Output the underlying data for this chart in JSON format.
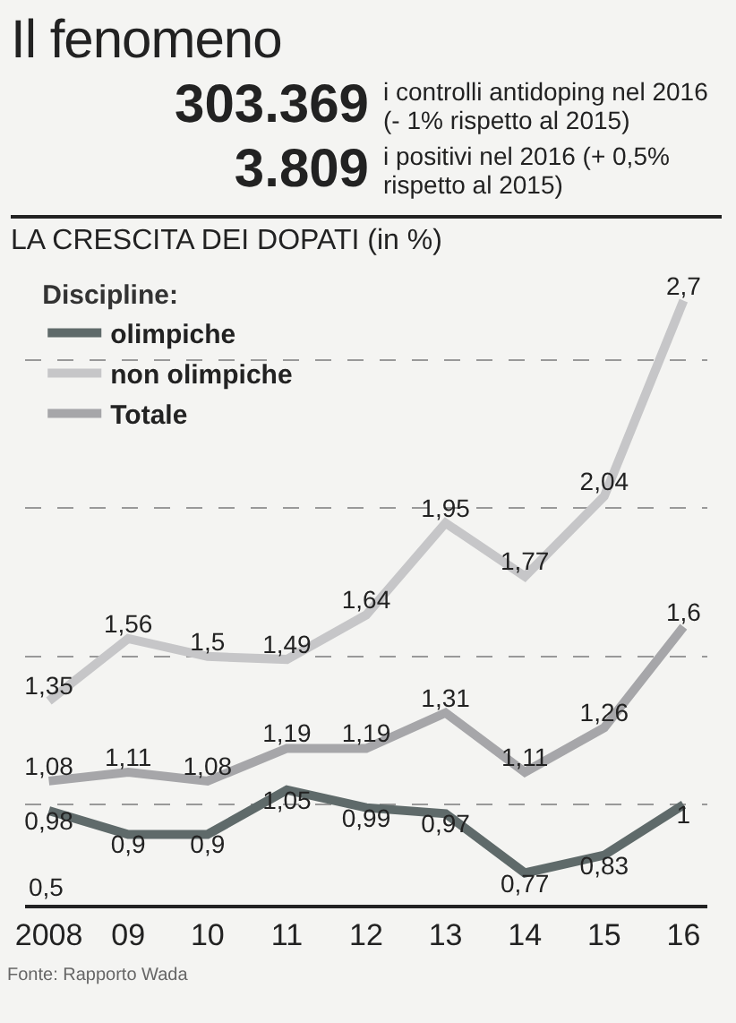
{
  "chart_data": {
    "type": "line",
    "title": "Il fenomeno",
    "subtitle": "LA CRESCITA DEI DOPATI (in %)",
    "legend_title": "Discipline:",
    "annotations": [
      "303.369",
      "i controlli antidoping nel 2016 (- 1% rispetto al 2015)",
      "3.809",
      "i positivi nel 2016 (+ 0,5% rispetto al 2015)",
      "Fonte: Rapporto Wada",
      "0,5"
    ],
    "categories": [
      "2008",
      "09",
      "10",
      "11",
      "12",
      "13",
      "14",
      "15",
      "16"
    ],
    "series": [
      {
        "name": "olimpiche",
        "color": "#5f6a6a",
        "values": [
          0.98,
          0.9,
          0.9,
          1.05,
          0.99,
          0.97,
          0.77,
          0.83,
          1
        ],
        "value_labels": [
          "0,98",
          "0,9",
          "0,9",
          "1,05",
          "0,99",
          "0,97",
          "0,77",
          "0,83",
          "1"
        ]
      },
      {
        "name": "non olimpiche",
        "color": "#c6c6c8",
        "values": [
          1.35,
          1.56,
          1.5,
          1.49,
          1.64,
          1.95,
          1.77,
          2.04,
          2.7
        ],
        "value_labels": [
          "1,35",
          "1,56",
          "1,5",
          "1,49",
          "1,64",
          "1,95",
          "1,77",
          "2,04",
          "2,7"
        ]
      },
      {
        "name": "Totale",
        "color": "#a6a6a9",
        "values": [
          1.08,
          1.11,
          1.08,
          1.19,
          1.19,
          1.31,
          1.11,
          1.26,
          1.6
        ],
        "value_labels": [
          "1,08",
          "1,11",
          "1,08",
          "1,19",
          "1,19",
          "1,31",
          "1,11",
          "1,26",
          "1,6"
        ]
      }
    ],
    "yticks": [
      {
        "value": 1,
        "label": null
      },
      {
        "value": 1.5,
        "label": null
      },
      {
        "value": 2,
        "label": null
      },
      {
        "value": 2.5,
        "label": null
      }
    ],
    "grid": "y",
    "legend": "top left",
    "marker": "none",
    "line_style": "solid"
  }
}
